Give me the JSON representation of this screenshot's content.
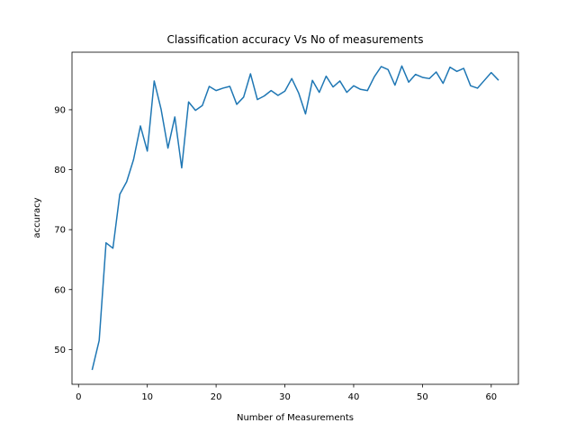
{
  "chart_data": {
    "type": "line",
    "title": "Classification accuracy Vs No of measurements",
    "xlabel": "Number of Measurements",
    "ylabel": "accuracy",
    "xlim": [
      -0.95,
      63.95
    ],
    "ylim": [
      44.2,
      99.6
    ],
    "xticks": [
      0,
      10,
      20,
      30,
      40,
      50,
      60
    ],
    "yticks": [
      50,
      60,
      70,
      80,
      90
    ],
    "grid": false,
    "colors": {
      "line": "#1f77b4"
    },
    "series": [
      {
        "x": [
          2,
          3,
          4,
          5,
          6,
          7,
          8,
          9,
          10,
          11,
          12,
          13,
          14,
          15,
          16,
          17,
          18,
          19,
          20,
          21,
          22,
          23,
          24,
          25,
          26,
          27,
          28,
          29,
          30,
          31,
          32,
          33,
          34,
          35,
          36,
          37,
          38,
          39,
          40,
          41,
          42,
          43,
          44,
          45,
          46,
          47,
          48,
          49,
          50,
          51,
          52,
          53,
          54,
          55,
          56,
          57,
          58,
          59,
          60,
          61
        ],
        "y": [
          46.7,
          51.5,
          67.8,
          66.9,
          75.9,
          78.0,
          81.7,
          87.3,
          83.1,
          94.8,
          90.1,
          83.6,
          88.8,
          80.3,
          91.3,
          89.9,
          90.7,
          93.9,
          93.2,
          93.6,
          93.9,
          90.9,
          92.1,
          96.0,
          91.7,
          92.3,
          93.2,
          92.4,
          93.1,
          95.2,
          92.8,
          89.3,
          94.9,
          92.9,
          95.6,
          93.8,
          94.8,
          92.9,
          94.0,
          93.4,
          93.2,
          95.5,
          97.2,
          96.7,
          94.1,
          97.3,
          94.6,
          95.9,
          95.4,
          95.2,
          96.3,
          94.4,
          97.1,
          96.4,
          96.9,
          94.0,
          93.6,
          94.9,
          96.2,
          95.0
        ]
      }
    ]
  }
}
